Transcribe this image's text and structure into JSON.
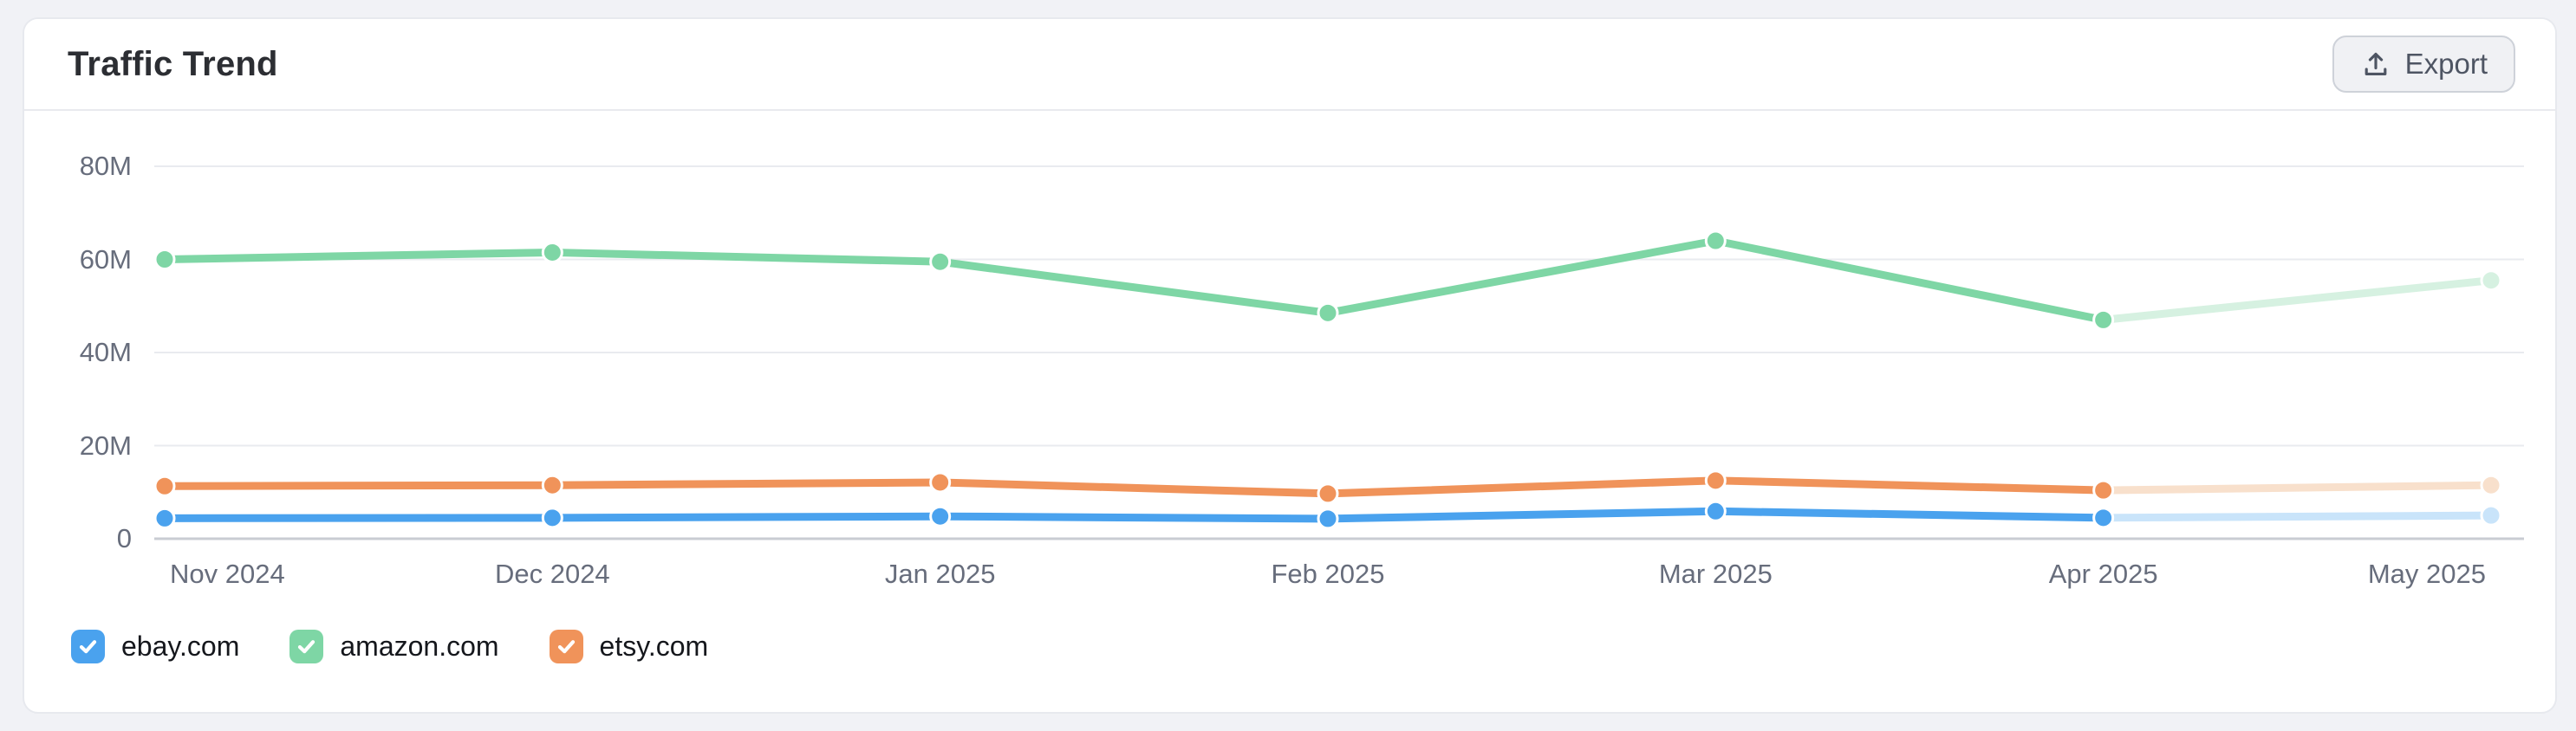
{
  "header": {
    "title": "Traffic Trend",
    "export": {
      "label": "Export",
      "icon": "upload-icon"
    }
  },
  "chart_data": {
    "type": "line",
    "title": "Traffic Trend",
    "unit": "M visits",
    "x": [
      "Nov 2024",
      "Dec 2024",
      "Jan 2025",
      "Feb 2025",
      "Mar 2025",
      "Apr 2025",
      "May 2025"
    ],
    "series": [
      {
        "name": "ebay.com",
        "color": "#4aa2ee",
        "faded_color": "#c9e4fa",
        "values": [
          4.4,
          4.5,
          4.8,
          4.3,
          5.9,
          4.5,
          5.0
        ]
      },
      {
        "name": "amazon.com",
        "color": "#7ed6a5",
        "faded_color": "#d6f1e1",
        "values": [
          60,
          61.5,
          59.5,
          48.5,
          64,
          47,
          55.5
        ]
      },
      {
        "name": "etsy.com",
        "color": "#f0935a",
        "faded_color": "#f8e0cc",
        "values": [
          11.3,
          11.5,
          12.1,
          9.7,
          12.5,
          10.4,
          11.5
        ]
      }
    ],
    "ylim": [
      0,
      80
    ],
    "yticks": [
      {
        "value": 80,
        "label": "80M"
      },
      {
        "value": 60,
        "label": "60M"
      },
      {
        "value": 40,
        "label": "40M"
      },
      {
        "value": 20,
        "label": "20M"
      },
      {
        "value": 0,
        "label": "0"
      }
    ],
    "grid": true,
    "legend_position": "bottom-left",
    "last_segment_projected": true
  },
  "legend": {
    "items": [
      {
        "label": "ebay.com",
        "color": "#4aa2ee",
        "checked": true
      },
      {
        "label": "amazon.com",
        "color": "#7ed6a5",
        "checked": true
      },
      {
        "label": "etsy.com",
        "color": "#f0935a",
        "checked": true
      }
    ]
  },
  "colors": {
    "grid_line": "#e9ebef",
    "zero_axis_line": "#c9ccd3",
    "tick_text": "#676d7c",
    "card_border": "#e7e9ee",
    "page_background": "#f1f2f6"
  }
}
